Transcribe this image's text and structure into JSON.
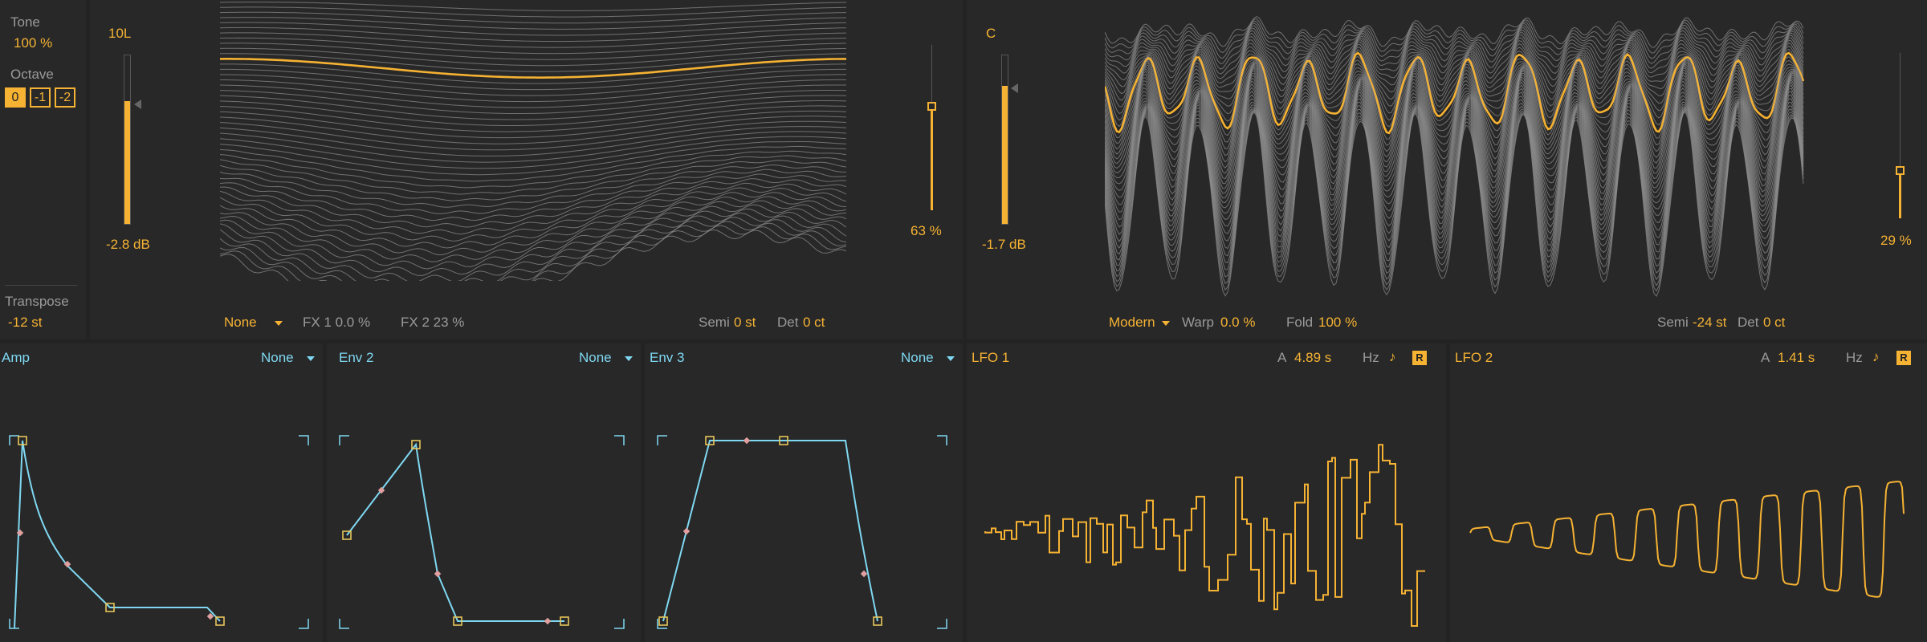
{
  "left_strip": {
    "tone_label": "Tone",
    "tone_value": "100 %",
    "octave_label": "Octave",
    "octave_options": [
      "0",
      "-1",
      "-2"
    ],
    "octave_selected": "0",
    "transpose_label": "Transpose",
    "transpose_value": "-12 st"
  },
  "osc1": {
    "label": "10L",
    "gain": "-2.8 dB",
    "gain_level": 0.73,
    "fx_type": "None",
    "fx1": "FX 1 0.0 %",
    "fx2": "FX 2 23 %",
    "semi_label": "Semi",
    "semi_value": "0 st",
    "det_label": "Det",
    "det_value": "0 ct",
    "position_value": "63 %",
    "position_level": 0.63
  },
  "osc2": {
    "label": "C",
    "gain": "-1.7 dB",
    "gain_level": 0.82,
    "fx_type": "Modern",
    "warp_label": "Warp",
    "warp_value": "0.0 %",
    "fold_label": "Fold",
    "fold_value": "100 %",
    "semi_label": "Semi",
    "semi_value": "-24 st",
    "det_label": "Det",
    "det_value": "0 ct",
    "position_value": "29 %",
    "position_level": 0.29
  },
  "envelopes": [
    {
      "title": "Amp",
      "mod": "None"
    },
    {
      "title": "Env 2",
      "mod": "None"
    },
    {
      "title": "Env 3",
      "mod": "None"
    }
  ],
  "lfos": [
    {
      "title": "LFO 1",
      "rate_prefix": "A",
      "rate_value": "4.89 s",
      "unit_hz": "Hz",
      "note_icon": "♪",
      "retrig": "R"
    },
    {
      "title": "LFO 2",
      "rate_prefix": "A",
      "rate_value": "1.41 s",
      "unit_hz": "Hz",
      "note_icon": "♪",
      "retrig": "R"
    }
  ],
  "colors": {
    "accent": "#f5b233",
    "env_line": "#7fd8f2",
    "env_handle": "#e0a0a0",
    "background": "#232323",
    "panel": "#282828"
  }
}
